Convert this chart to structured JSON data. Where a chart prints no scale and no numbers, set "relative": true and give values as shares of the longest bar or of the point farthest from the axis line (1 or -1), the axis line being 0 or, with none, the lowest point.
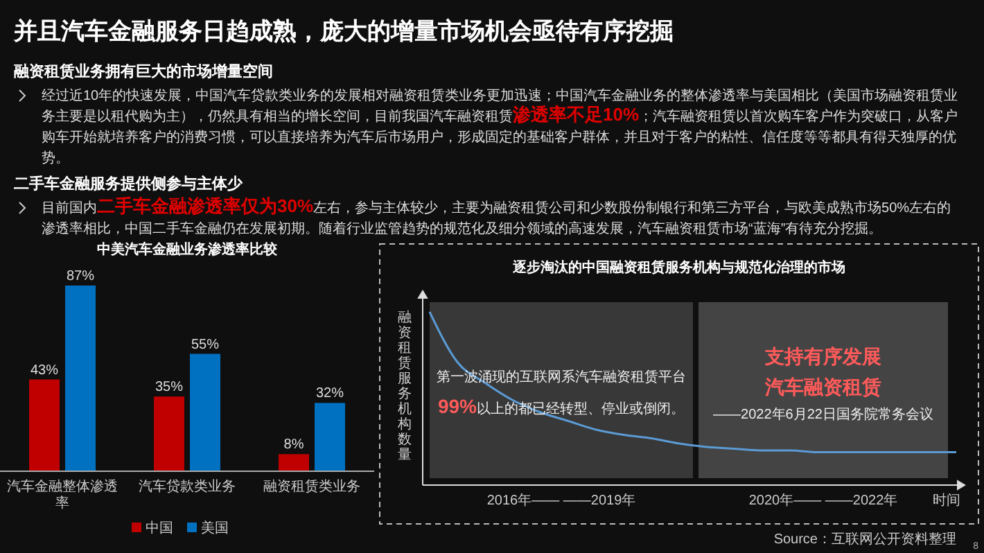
{
  "chart_data": [
    {
      "type": "other",
      "title": "并且汽车金融服务日趋成熟，庞大的增量市场机会亟待有序挖掘",
      "annotations": [
        "融资租赁业务拥有巨大的市场增量空间",
        "经过近10年的快速发展，中国汽车贷款类业务的发展相对融资租赁类业务更加迅速；中国汽车金融业务的整体渗透率与美国相比（美国市场融资租赁业务主要是以租代购为主），仍然具有相当的增长空间，目前我国汽车融资租赁",
        "渗透率不足10%",
        "；汽车融资租赁以首次购车客户作为突破口，从客户购车开始就培养客户的消费习惯，可以直接培养为汽车后市场用户，形成固定的基础客户群体，并且对于客户的粘性、信任度等等都具有得天独厚的优势。",
        "二手车金融服务提供侧参与主体少",
        "目前国内",
        "二手车金融渗透率仅为30%",
        "左右，参与主体较少，主要为融资租赁公司和少数股份制银行和第三方平台，与欧美成熟市场50%左右的渗透率相比，中国二手车金融仍在发展初期。随着行业监管趋势的规范化及细分领域的高速发展，汽车融资租赁市场“蓝海”有待充分挖掘。",
        "8"
      ]
    },
    {
      "type": "bar",
      "title": "中美汽车金融业务渗透率比较",
      "categories": [
        "汽车金融整体渗透率",
        "汽车贷款类业务",
        "融资租赁类业务"
      ],
      "legend": "bottom",
      "series": [
        {
          "name": "中国",
          "color": "#c00000",
          "values": [
            43,
            35,
            8
          ],
          "value_labels": [
            "43%",
            "35%",
            "8%"
          ]
        },
        {
          "name": "美国",
          "color": "#0070c0",
          "values": [
            87,
            55,
            32
          ],
          "value_labels": [
            "87%",
            "55%",
            "32%"
          ]
        }
      ]
    },
    {
      "type": "line",
      "relative": true,
      "title": "逐步淘汰的中国融资租赁服务机构与规范化治理的市场",
      "ylabel": "融资租赁服务机构数量",
      "xlabel": "时间",
      "categories": [
        null,
        null,
        null,
        null,
        null,
        null,
        null,
        null,
        null,
        null,
        null,
        null,
        null,
        null,
        null,
        null,
        null,
        null,
        null,
        null
      ],
      "series": [
        {
          "color": "#5b9bd5",
          "values": [
            1,
            0.71,
            0.59,
            0.49,
            0.42,
            0.37,
            0.32,
            0.29,
            0.27,
            0.24,
            0.22,
            0.21,
            0.2,
            0.2,
            0.19,
            0.19,
            0.19,
            0.19,
            0.19,
            0.19
          ]
        }
      ],
      "annotations": [
        "第一波涌现的互联网系汽车融资租赁平台",
        "99%",
        "以上的都已经转型、停业或倒闭。",
        "支持有序发展",
        "汽车融资租赁",
        "——2022年6月22日国务院常务会议",
        "2016年—— ——2019年",
        "2020年—— ——2022年",
        "Source：互联网公开资料整理"
      ]
    }
  ]
}
